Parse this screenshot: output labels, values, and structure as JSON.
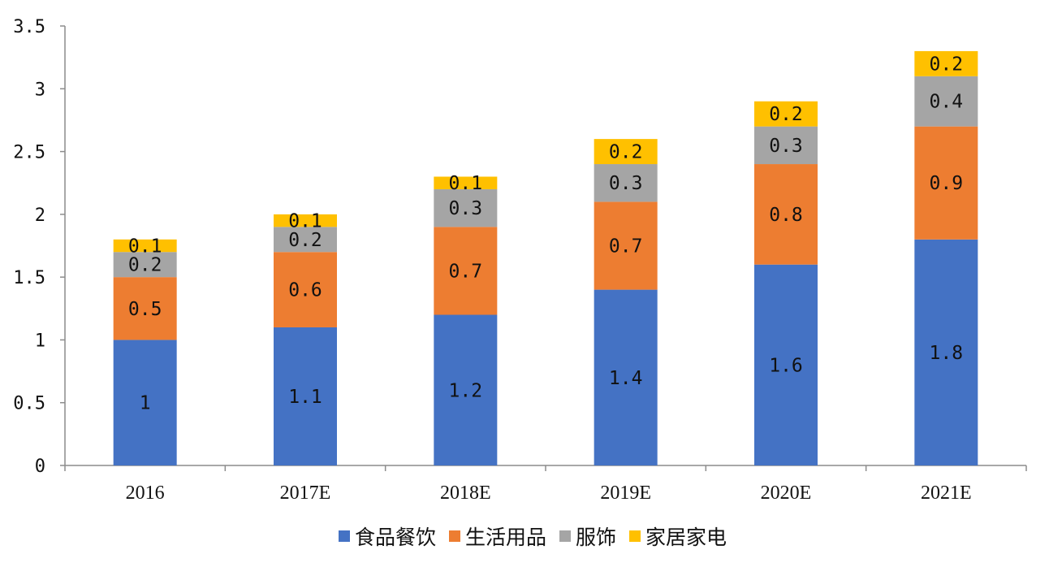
{
  "chart_data": {
    "type": "bar",
    "stacked": true,
    "categories": [
      "2016",
      "2017E",
      "2018E",
      "2019E",
      "2020E",
      "2021E"
    ],
    "series": [
      {
        "name": "食品餐饮",
        "color": "#4472C4",
        "values": [
          1,
          1.1,
          1.2,
          1.4,
          1.6,
          1.8
        ],
        "labels": [
          "1",
          "1.1",
          "1.2",
          "1.4",
          "1.6",
          "1.8"
        ]
      },
      {
        "name": "生活用品",
        "color": "#ED7D31",
        "values": [
          0.5,
          0.6,
          0.7,
          0.7,
          0.8,
          0.9
        ],
        "labels": [
          "0.5",
          "0.6",
          "0.7",
          "0.7",
          "0.8",
          "0.9"
        ]
      },
      {
        "name": "服饰",
        "color": "#A5A5A5",
        "values": [
          0.2,
          0.2,
          0.3,
          0.3,
          0.3,
          0.4
        ],
        "labels": [
          "0.2",
          "0.2",
          "0.3",
          "0.3",
          "0.3",
          "0.4"
        ]
      },
      {
        "name": "家居家电",
        "color": "#FFC000",
        "values": [
          0.1,
          0.1,
          0.1,
          0.2,
          0.2,
          0.2
        ],
        "labels": [
          "0.1",
          "0.1",
          "0.1",
          "0.2",
          "0.2",
          "0.2"
        ]
      }
    ],
    "ylim": [
      0,
      3.5
    ],
    "yticks": [
      "0",
      "0.5",
      "1",
      "1.5",
      "2",
      "2.5",
      "3",
      "3.5"
    ],
    "grid": false,
    "legend": "bottom",
    "title": "",
    "xlabel": "",
    "ylabel": ""
  }
}
